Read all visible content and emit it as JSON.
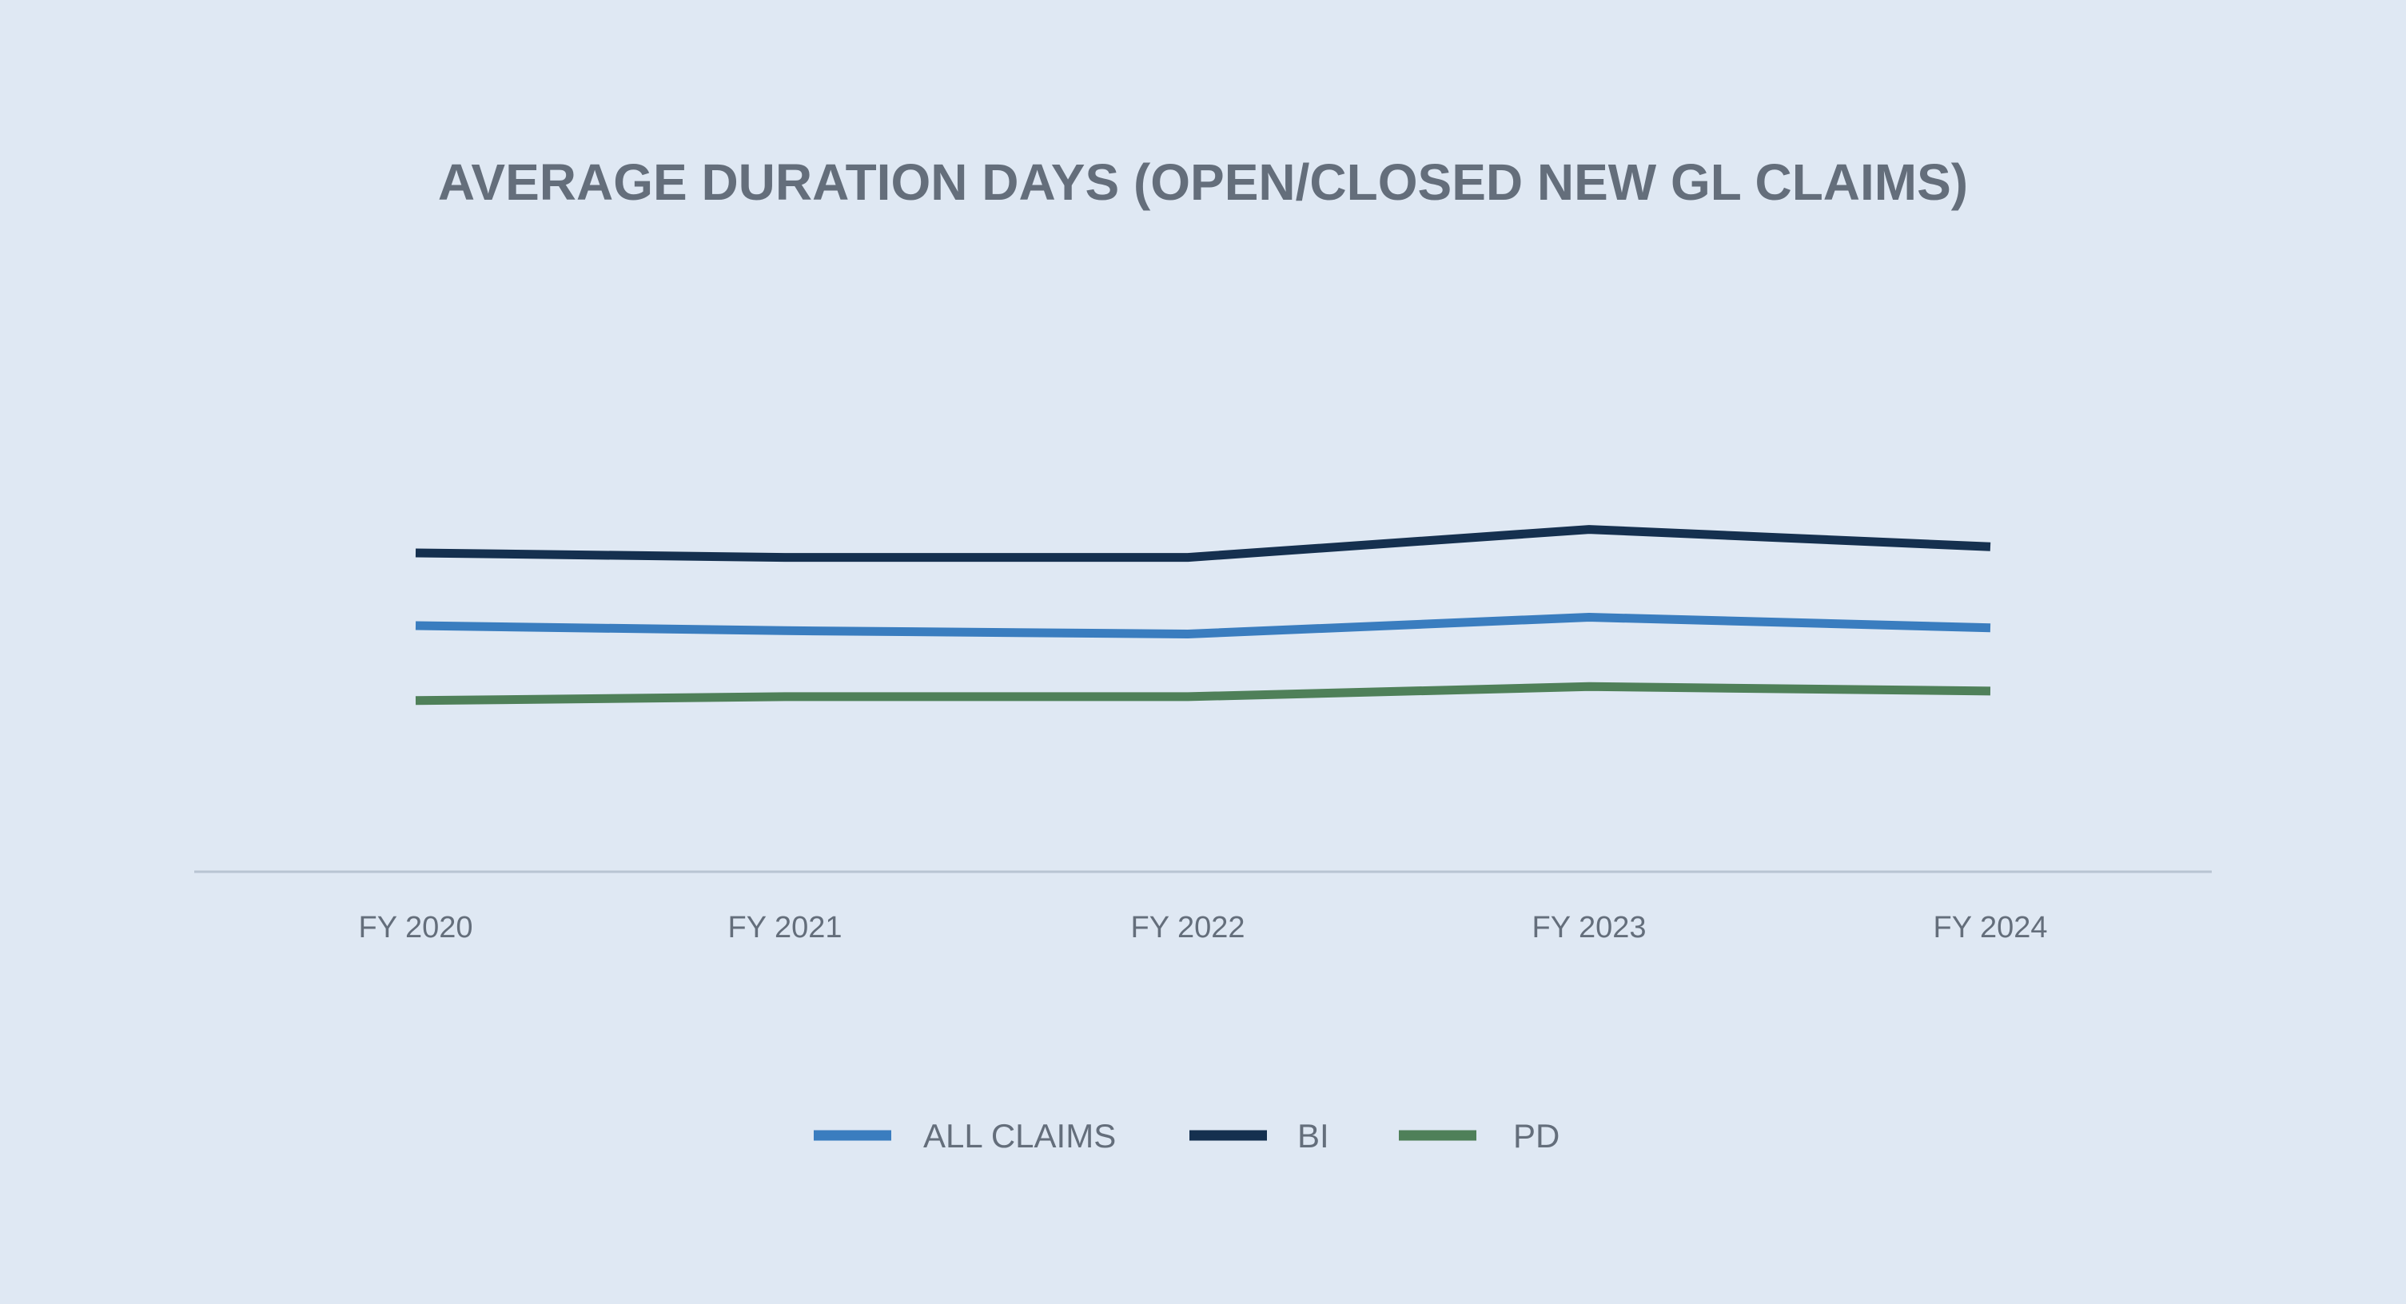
{
  "chart_data": {
    "type": "line",
    "title": "AVERAGE DURATION DAYS (OPEN/CLOSED NEW GL CLAIMS)",
    "xlabel": "",
    "ylabel": "",
    "categories": [
      "FY 2020",
      "FY 2021",
      "FY 2022",
      "FY 2023",
      "FY 2024"
    ],
    "series": [
      {
        "name": "ALL CLAIMS",
        "color": "#3a7dbf",
        "values": [
          440,
          431,
          425,
          455,
          436
        ]
      },
      {
        "name": "BI",
        "color": "#15304f",
        "values": [
          570,
          562,
          562,
          612,
          581
        ]
      },
      {
        "name": "PD",
        "color": "#4f8059",
        "values": [
          306,
          313,
          313,
          331,
          323
        ]
      }
    ],
    "ylim": [
      0,
      1000
    ],
    "grid": false,
    "legend_position": "bottom"
  }
}
